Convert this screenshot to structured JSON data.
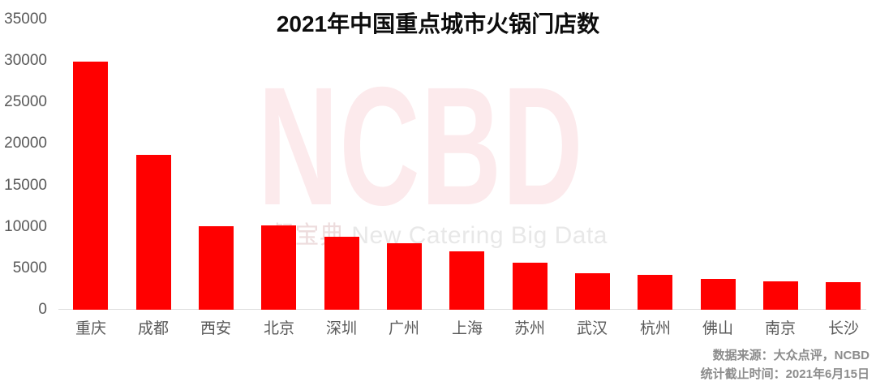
{
  "chart_data": {
    "type": "bar",
    "title": "2021年中国重点城市火锅门店数",
    "categories": [
      "重庆",
      "成都",
      "西安",
      "北京",
      "深圳",
      "广州",
      "上海",
      "苏州",
      "武汉",
      "杭州",
      "佛山",
      "南京",
      "长沙"
    ],
    "values": [
      29900,
      18700,
      10100,
      10200,
      8800,
      8000,
      7000,
      5700,
      4400,
      4200,
      3700,
      3400,
      3300
    ],
    "xlabel": "",
    "ylabel": "",
    "ylim": [
      0,
      35000
    ],
    "yticks": [
      35000,
      30000,
      25000,
      20000,
      15000,
      10000,
      5000,
      0
    ],
    "ytick_labels": [
      "35000",
      "30000",
      "25000",
      "20000",
      "15000",
      "10000",
      "5000",
      "0"
    ],
    "grid": false,
    "legend": false,
    "bar_color": "#FF0000"
  },
  "watermark": {
    "logo": "NCBD",
    "sub_cjk": "餐宝典",
    "sub_latin": "New Catering Big Data",
    "logo_color": "#FCEAEC",
    "sub_color": "#E8E8E8"
  },
  "footer": {
    "source": "数据来源：大众点评，NCBD",
    "cutoff": "统计截止时间：2021年6月15日"
  },
  "colors": {
    "bar": "#FF0000",
    "axis_line": "#DCDCDC",
    "tick_text": "#595959",
    "footer_text": "#8C8C8C",
    "title_text": "#0D0D0D"
  }
}
